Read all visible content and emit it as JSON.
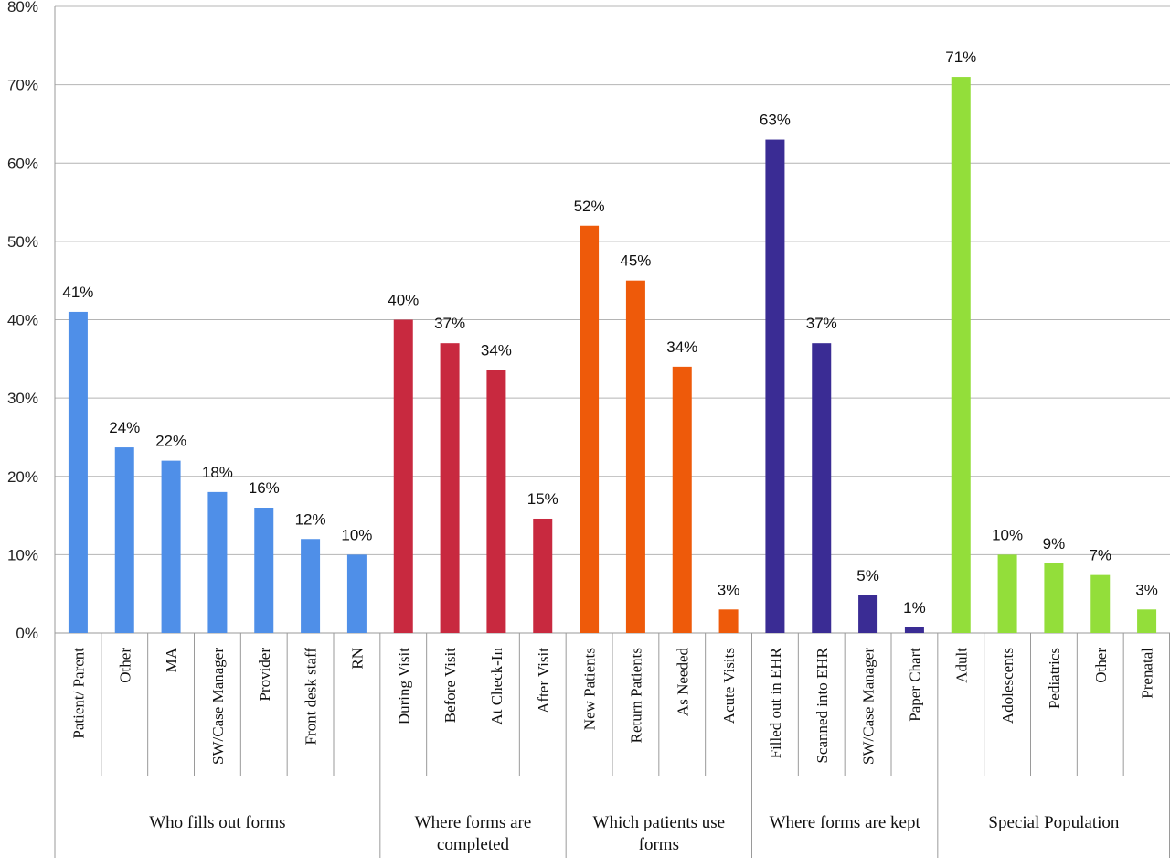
{
  "chart_data": {
    "type": "bar",
    "title": "",
    "xlabel": "",
    "ylabel": "",
    "ylim": [
      0,
      80
    ],
    "yticks": [
      "0%",
      "10%",
      "20%",
      "30%",
      "40%",
      "50%",
      "60%",
      "70%",
      "80%"
    ],
    "grid": true,
    "groups": [
      {
        "name": "Who fills out forms",
        "name_lines": [
          "Who fills out forms"
        ],
        "color": "#4F8FE8",
        "bars": [
          {
            "category": "Patient/ Parent",
            "value": 41,
            "label": "41%"
          },
          {
            "category": "Other",
            "value": 23.7,
            "label": "24%"
          },
          {
            "category": "MA",
            "value": 22,
            "label": "22%"
          },
          {
            "category": "SW/Case Manager",
            "value": 18,
            "label": "18%"
          },
          {
            "category": "Provider",
            "value": 16,
            "label": "16%"
          },
          {
            "category": "Front desk staff",
            "value": 12,
            "label": "12%"
          },
          {
            "category": "RN",
            "value": 10,
            "label": "10%"
          }
        ]
      },
      {
        "name": "Where forms are completed",
        "name_lines": [
          "Where forms are",
          "completed"
        ],
        "color": "#C8293F",
        "bars": [
          {
            "category": "During Visit",
            "value": 40,
            "label": "40%"
          },
          {
            "category": "Before Visit",
            "value": 37,
            "label": "37%"
          },
          {
            "category": "At Check-In",
            "value": 33.6,
            "label": "34%"
          },
          {
            "category": "After Visit",
            "value": 14.6,
            "label": "15%"
          }
        ]
      },
      {
        "name": "Which patients use forms",
        "name_lines": [
          "Which patients use",
          "forms"
        ],
        "color": "#EE5A0A",
        "bars": [
          {
            "category": "New Patients",
            "value": 52,
            "label": "52%"
          },
          {
            "category": "Return Patients",
            "value": 45,
            "label": "45%"
          },
          {
            "category": "As Needed",
            "value": 34,
            "label": "34%"
          },
          {
            "category": "Acute Visits",
            "value": 3,
            "label": "3%"
          }
        ]
      },
      {
        "name": "Where forms are kept",
        "name_lines": [
          "Where forms are kept"
        ],
        "color": "#3A2C94",
        "bars": [
          {
            "category": "Filled out in EHR",
            "value": 63,
            "label": "63%"
          },
          {
            "category": "Scanned into EHR",
            "value": 37,
            "label": "37%"
          },
          {
            "category": "SW/Case Manager",
            "value": 4.8,
            "label": "5%"
          },
          {
            "category": "Paper Chart",
            "value": 0.7,
            "label": "1%"
          }
        ]
      },
      {
        "name": "Special Population",
        "name_lines": [
          "Special Population"
        ],
        "color": "#93DE3A",
        "bars": [
          {
            "category": "Adult",
            "value": 71,
            "label": "71%"
          },
          {
            "category": "Adolescents",
            "value": 10,
            "label": "10%"
          },
          {
            "category": "Pediatrics",
            "value": 8.9,
            "label": "9%"
          },
          {
            "category": "Other",
            "value": 7.4,
            "label": "7%"
          },
          {
            "category": "Prenatal",
            "value": 3,
            "label": "3%"
          }
        ]
      }
    ]
  }
}
